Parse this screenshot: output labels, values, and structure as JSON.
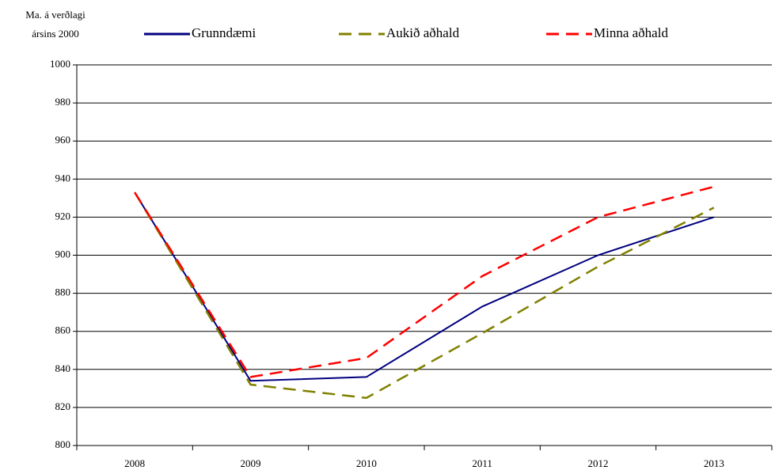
{
  "chart_data": {
    "type": "line",
    "y_label": [
      "Ma. á verðlagi",
      "ársins 2000"
    ],
    "categories": [
      "2008",
      "2009",
      "2010",
      "2011",
      "2012",
      "2013"
    ],
    "series": [
      {
        "name": "Grunndæmi",
        "color": "#000080",
        "dash": "solid",
        "values": [
          933,
          834,
          836,
          873,
          900,
          920
        ]
      },
      {
        "name": "Aukið aðhald",
        "color": "#808000",
        "dash": "dashed",
        "values": [
          933,
          832,
          825,
          859,
          894,
          925
        ]
      },
      {
        "name": "Minna aðhald",
        "color": "#ff0000",
        "dash": "dashed",
        "values": [
          933,
          836,
          846,
          889,
          920,
          936
        ]
      }
    ],
    "ylim": [
      800,
      1000
    ],
    "yticks": [
      800,
      820,
      840,
      860,
      880,
      900,
      920,
      940,
      960,
      980,
      1000
    ],
    "grid": true,
    "legend": "top"
  }
}
